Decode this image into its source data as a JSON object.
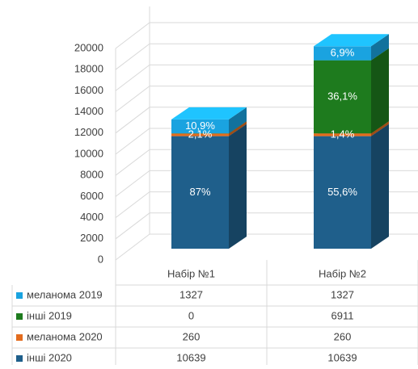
{
  "chart_data": {
    "type": "bar3d_stacked",
    "categories": [
      "Набір №1",
      "Набір №2"
    ],
    "ylim": [
      0,
      20000
    ],
    "yticks": [
      0,
      2000,
      4000,
      6000,
      8000,
      10000,
      12000,
      14000,
      16000,
      18000,
      20000
    ],
    "grid": true,
    "series": [
      {
        "name": "інші 2020",
        "color": "#1f5f8b",
        "values": [
          10639,
          10639
        ],
        "percents": [
          87,
          55.6
        ],
        "percent_labels": [
          "87%",
          "55,6%"
        ]
      },
      {
        "name": "меланома 2020",
        "color": "#e36c1e",
        "values": [
          260,
          260
        ],
        "percents": [
          2.1,
          1.4
        ],
        "percent_labels": [
          "2,1%",
          "1,4%"
        ]
      },
      {
        "name": "інші 2019",
        "color": "#1e7b1e",
        "values": [
          0,
          6911
        ],
        "percents": [
          null,
          36.1
        ],
        "percent_labels": [
          null,
          "36,1%"
        ]
      },
      {
        "name": "меланома 2019",
        "color": "#1aa3e0",
        "values": [
          1327,
          1327
        ],
        "percents": [
          10.9,
          6.9
        ],
        "percent_labels": [
          "10,9%",
          "6,9%"
        ]
      }
    ]
  }
}
